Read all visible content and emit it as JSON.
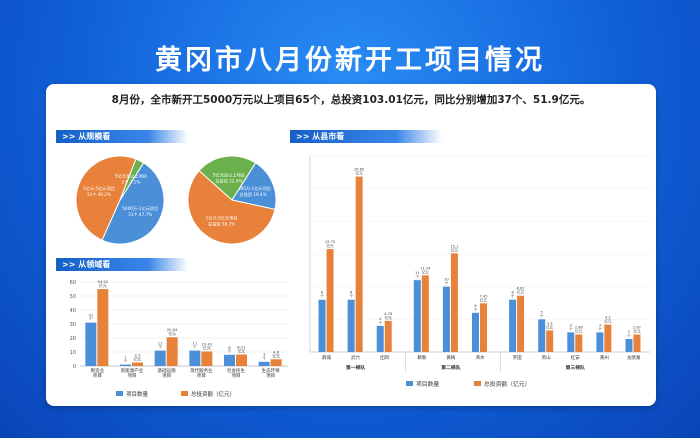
{
  "title": "黄冈市八月份新开工项目情况",
  "summary": "8月份，全市新开工5000万元以上项目65个，总投资103.01亿元，同比分别增加37个、51.9亿元。",
  "sections": {
    "scale": "从规模看",
    "field": "从领域看",
    "county": "从县市看"
  },
  "colors": {
    "blue": "#4a8fd8",
    "orange": "#e8823a",
    "green": "#6ab04c"
  },
  "chart_data": [
    {
      "type": "pie",
      "slices": [
        {
          "label": "5000万-1亿元项目",
          "sub": "31个 47.7%",
          "value": 47.7,
          "color": "#4a8fd8"
        },
        {
          "label": "1亿元-5亿元项目",
          "sub": "32个 49.2%",
          "value": 49.2,
          "color": "#e8823a"
        },
        {
          "label": "5亿元及以上项目",
          "sub": "2个 3.1%",
          "value": 3.1,
          "color": "#6ab04c"
        }
      ]
    },
    {
      "type": "pie",
      "slices": [
        {
          "label": "5000万-1亿元项目",
          "sub": "总投资 19.4%",
          "value": 19.4,
          "color": "#4a8fd8"
        },
        {
          "label": "1亿元-5亿元项目",
          "sub": "总投资 58.2%",
          "value": 58.2,
          "color": "#e8823a"
        },
        {
          "label": "5亿元及以上项目",
          "sub": "总投资 22.4%",
          "value": 22.4,
          "color": "#6ab04c"
        }
      ]
    },
    {
      "type": "bar",
      "categories": [
        "制造业项目",
        "新能源产业项目",
        "基础设施项目",
        "现代服务业项目",
        "社会民生项目",
        "生态环保项目"
      ],
      "series": [
        {
          "name": "项目数量",
          "values": [
            31,
            1,
            11,
            11,
            8,
            3
          ],
          "labels": [
            "31个",
            "1个",
            "11个",
            "11个",
            "8个",
            "3个"
          ]
        },
        {
          "name": "总投资额（亿元）",
          "values": [
            54.92,
            2.5,
            20.54,
            10.42,
            8.21,
            4.8
          ],
          "labels": [
            "54.92亿元",
            "2.5亿元",
            "20.54亿元",
            "10.42亿元",
            "8.21亿元",
            "4.8亿元"
          ]
        }
      ],
      "yticks": [
        0,
        10,
        20,
        30,
        40,
        50,
        60
      ],
      "ylim": [
        0,
        60
      ]
    },
    {
      "type": "bar",
      "categories": [
        "麻城",
        "武穴",
        "团风",
        "蕲春",
        "黄梅",
        "浠水",
        "罗田",
        "英山",
        "红安",
        "黄州",
        "龙感湖"
      ],
      "groups": [
        {
          "label": "第一梯队",
          "members": [
            "麻城",
            "武穴",
            "团风"
          ]
        },
        {
          "label": "第二梯队",
          "members": [
            "蕲春",
            "黄梅",
            "浠水"
          ]
        },
        {
          "label": "第三梯队",
          "members": [
            "罗田",
            "英山",
            "红安",
            "黄州",
            "龙感湖"
          ]
        }
      ],
      "series": [
        {
          "name": "项目数量",
          "values": [
            8,
            8,
            4,
            11,
            10,
            6,
            8,
            5,
            3,
            3,
            2
          ],
          "labels": [
            "8个",
            "8个",
            "4个",
            "11个",
            "10个",
            "6个",
            "8个",
            "5个",
            "3个",
            "3个",
            "2个"
          ]
        },
        {
          "name": "总投资额（亿元）",
          "values": [
            15.75,
            26.85,
            4.76,
            11.74,
            15.1,
            7.45,
            8.62,
            3.3,
            2.68,
            4.2,
            2.67
          ],
          "labels": [
            "15.75亿元",
            "26.85亿元",
            "4.76亿元",
            "11.74亿元",
            "15.1亿元",
            "7.45亿元",
            "8.62亿元",
            "3.3亿元",
            "2.68亿元",
            "4.2亿元",
            "2.67亿元"
          ]
        }
      ],
      "ylim": [
        0,
        30
      ]
    }
  ]
}
